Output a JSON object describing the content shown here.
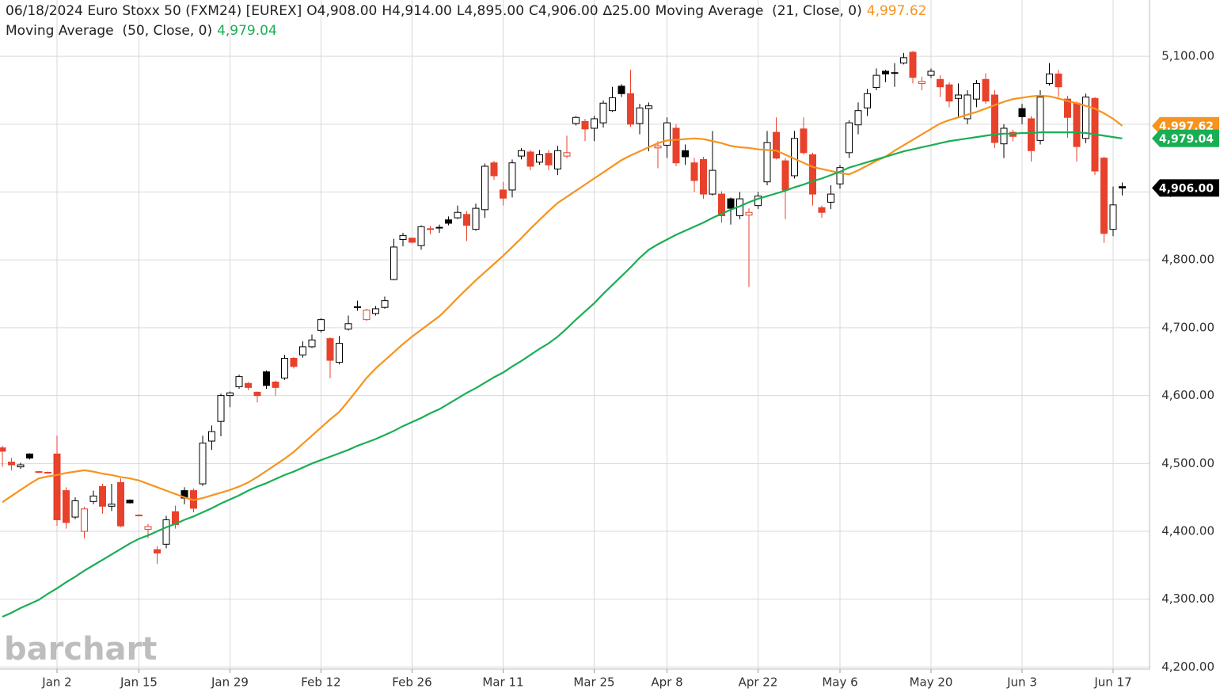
{
  "chart_data": {
    "type": "candlestick",
    "title": "06/18/2024 Euro Stoxx 50 (FXM24) [EUREX]",
    "ohlc_labels": [
      "O4,908.00",
      "H4,914.00",
      "L4,895.00",
      "C4,906.00"
    ],
    "change_label": "∆25.00",
    "last_price_label": "4,906.00",
    "watermark": "barchart",
    "up_color": "#000000",
    "down_color": "#e8412c",
    "categories": [
      null,
      null,
      null,
      null,
      null,
      null,
      "Jan 2",
      null,
      null,
      null,
      null,
      null,
      null,
      null,
      null,
      "Jan 15",
      null,
      null,
      null,
      null,
      null,
      null,
      null,
      null,
      null,
      "Jan 29",
      null,
      null,
      null,
      null,
      null,
      null,
      null,
      null,
      null,
      "Feb 12",
      null,
      null,
      null,
      null,
      null,
      null,
      null,
      null,
      null,
      "Feb 26",
      null,
      null,
      null,
      null,
      null,
      null,
      null,
      null,
      null,
      "Mar 11",
      null,
      null,
      null,
      null,
      null,
      null,
      null,
      null,
      null,
      "Mar 25",
      null,
      null,
      null,
      null,
      null,
      null,
      null,
      "Apr 8",
      null,
      null,
      null,
      null,
      null,
      null,
      null,
      null,
      null,
      "Apr 22",
      null,
      null,
      null,
      null,
      null,
      null,
      null,
      null,
      "May 6",
      null,
      null,
      null,
      null,
      null,
      null,
      null,
      null,
      null,
      "May 20",
      null,
      null,
      null,
      null,
      null,
      null,
      null,
      null,
      null,
      "Jun 3",
      null,
      null,
      null,
      null,
      null,
      null,
      null,
      null,
      null,
      "Jun 17",
      null
    ],
    "open": [
      4523,
      4502,
      4495,
      4514,
      4488,
      4487,
      4514,
      4460,
      4421,
      4400,
      4444,
      4466,
      4437,
      4472,
      4446,
      4424,
      4403,
      4373,
      4381,
      4429,
      4460,
      4460,
      4470,
      4533,
      4562,
      4600,
      4613,
      4618,
      4605,
      4635,
      4620,
      4626,
      4655,
      4660,
      4672,
      4696,
      4684,
      4649,
      4698,
      4730,
      4712,
      4721,
      4730,
      4771,
      4830,
      4832,
      4821,
      4845,
      4848,
      4859,
      4862,
      4867,
      4845,
      4874,
      4943,
      4903,
      4903,
      4953,
      4959,
      4944,
      4957,
      4934,
      4953,
      5001,
      5004,
      4994,
      5002,
      5020,
      5056,
      5045,
      5001,
      5023,
      4965,
      4969,
      4994,
      4961,
      4943,
      4948,
      4897,
      4897,
      4890,
      4865,
      4866,
      4880,
      4915,
      4988,
      4946,
      4924,
      4993,
      4955,
      4877,
      4885,
      4912,
      4958,
      4999,
      5024,
      5054,
      5078,
      5076,
      5090,
      5106,
      5060,
      5072,
      5066,
      5058,
      5038,
      5008,
      5037,
      5066,
      5043,
      4971,
      4988,
      5023,
      5008,
      4976,
      5060,
      5074,
      5037,
      5031,
      4979,
      5038,
      4950,
      4845,
      4908
    ],
    "high": [
      4526,
      4508,
      4501,
      4515,
      4489,
      4488,
      4541,
      4465,
      4450,
      4436,
      4460,
      4470,
      4470,
      4478,
      4447,
      4425,
      4411,
      4378,
      4423,
      4438,
      4465,
      4463,
      4541,
      4556,
      4603,
      4606,
      4631,
      4620,
      4606,
      4637,
      4622,
      4660,
      4657,
      4680,
      4690,
      4714,
      4686,
      4688,
      4718,
      4740,
      4728,
      4732,
      4746,
      4831,
      4840,
      4833,
      4851,
      4850,
      4852,
      4864,
      4880,
      4872,
      4883,
      4942,
      4946,
      4915,
      4948,
      4965,
      4962,
      4962,
      4962,
      4968,
      4983,
      5012,
      5008,
      5012,
      5035,
      5055,
      5059,
      5080,
      5030,
      5032,
      4975,
      5010,
      5000,
      4970,
      4950,
      4952,
      4990,
      4901,
      4892,
      4900,
      4876,
      4900,
      4990,
      5010,
      4950,
      4990,
      5010,
      4958,
      4880,
      4910,
      4940,
      5006,
      5032,
      5052,
      5082,
      5080,
      5090,
      5105,
      5108,
      5070,
      5082,
      5072,
      5062,
      5060,
      5050,
      5065,
      5075,
      5050,
      5000,
      4992,
      5030,
      5012,
      5050,
      5090,
      5080,
      5042,
      5033,
      5045,
      5040,
      4952,
      4908,
      4914
    ],
    "low": [
      4495,
      4490,
      4492,
      4506,
      4486,
      4485,
      4408,
      4404,
      4418,
      4390,
      4440,
      4426,
      4430,
      4406,
      4441,
      4422,
      4390,
      4352,
      4375,
      4404,
      4440,
      4428,
      4467,
      4520,
      4540,
      4583,
      4610,
      4608,
      4590,
      4610,
      4600,
      4623,
      4640,
      4656,
      4670,
      4693,
      4626,
      4646,
      4696,
      4725,
      4710,
      4718,
      4728,
      4770,
      4820,
      4824,
      4815,
      4838,
      4840,
      4851,
      4860,
      4828,
      4843,
      4862,
      4918,
      4880,
      4892,
      4948,
      4932,
      4940,
      4932,
      4925,
      4950,
      4998,
      4975,
      4975,
      4995,
      5018,
      5040,
      4996,
      4985,
      4960,
      4935,
      4950,
      4938,
      4940,
      4900,
      4890,
      4895,
      4855,
      4852,
      4860,
      4760,
      4875,
      4910,
      4948,
      4860,
      4920,
      4955,
      4880,
      4862,
      4875,
      4905,
      4950,
      4985,
      5012,
      5050,
      5062,
      5055,
      5088,
      5060,
      5050,
      5068,
      5040,
      5025,
      5010,
      5000,
      5025,
      5030,
      4965,
      4950,
      4975,
      5000,
      4945,
      4970,
      5057,
      5040,
      4980,
      4945,
      4972,
      4925,
      4825,
      4835,
      4895
    ],
    "close": [
      4518,
      4498,
      4498,
      4508,
      4487,
      4486,
      4417,
      4413,
      4445,
      4433,
      4452,
      4437,
      4440,
      4408,
      4442,
      4423,
      4407,
      4368,
      4417,
      4410,
      4449,
      4434,
      4530,
      4547,
      4600,
      4604,
      4628,
      4612,
      4600,
      4615,
      4612,
      4655,
      4643,
      4672,
      4682,
      4712,
      4652,
      4677,
      4706,
      4731,
      4726,
      4728,
      4740,
      4819,
      4836,
      4826,
      4849,
      4846,
      4848,
      4854,
      4870,
      4851,
      4876,
      4938,
      4924,
      4891,
      4943,
      4961,
      4938,
      4955,
      4940,
      4961,
      4958,
      5010,
      4993,
      5008,
      5031,
      5039,
      5045,
      5000,
      5024,
      5027,
      4968,
      5002,
      4943,
      4952,
      4917,
      4897,
      4932,
      4865,
      4876,
      4890,
      4870,
      4894,
      4973,
      4950,
      4903,
      4979,
      4958,
      4897,
      4870,
      4897,
      4936,
      5002,
      5020,
      5045,
      5072,
      5074,
      5075,
      5098,
      5069,
      5063,
      5078,
      5055,
      5034,
      5043,
      5043,
      5060,
      5034,
      4973,
      4994,
      4982,
      5011,
      4961,
      5040,
      5074,
      5055,
      5010,
      4967,
      5040,
      4931,
      4839,
      4881,
      4906
    ],
    "series": [
      {
        "name": "Moving Average  (21, Close, 0)",
        "color": "#f7931e",
        "last_label": "4,997.62",
        "values": [
          4443,
          4452,
          4461,
          4470,
          4478,
          4481,
          4483,
          4486,
          4488,
          4490,
          4488,
          4485,
          4483,
          4480,
          4478,
          4475,
          4470,
          4465,
          4460,
          4455,
          4450,
          4446,
          4449,
          4453,
          4457,
          4461,
          4466,
          4472,
          4480,
          4489,
          4498,
          4507,
          4517,
          4529,
          4541,
          4553,
          4565,
          4576,
          4592,
          4609,
          4626,
          4640,
          4652,
          4664,
          4676,
          4687,
          4697,
          4707,
          4717,
          4730,
          4744,
          4757,
          4770,
          4782,
          4794,
          4806,
          4819,
          4832,
          4846,
          4859,
          4872,
          4884,
          4893,
          4902,
          4911,
          4920,
          4929,
          4938,
          4947,
          4954,
          4960,
          4966,
          4972,
          4976,
          4977,
          4978,
          4979,
          4978,
          4975,
          4972,
          4968,
          4966,
          4965,
          4963,
          4962,
          4961,
          4955,
          4949,
          4943,
          4937,
          4934,
          4931,
          4928,
          4926,
          4932,
          4939,
          4946,
          4952,
          4961,
          4969,
          4977,
          4985,
          4993,
          5001,
          5006,
          5010,
          5014,
          5018,
          5023,
          5028,
          5033,
          5037,
          5039,
          5041,
          5042,
          5041,
          5038,
          5034,
          5031,
          5027,
          5023,
          5016,
          5008,
          4997.62
        ]
      },
      {
        "name": "Moving Average  (50, Close, 0)",
        "color": "#1aae54",
        "last_label": "4,979.04",
        "values": [
          4274,
          4280,
          4287,
          4293,
          4299,
          4308,
          4316,
          4325,
          4333,
          4342,
          4350,
          4358,
          4366,
          4374,
          4382,
          4389,
          4394,
          4400,
          4406,
          4411,
          4417,
          4422,
          4428,
          4434,
          4441,
          4447,
          4453,
          4460,
          4466,
          4471,
          4477,
          4483,
          4488,
          4494,
          4500,
          4505,
          4510,
          4515,
          4520,
          4526,
          4531,
          4536,
          4542,
          4548,
          4555,
          4561,
          4567,
          4574,
          4580,
          4588,
          4596,
          4604,
          4611,
          4619,
          4627,
          4634,
          4643,
          4651,
          4660,
          4669,
          4677,
          4687,
          4699,
          4712,
          4724,
          4736,
          4750,
          4763,
          4776,
          4789,
          4803,
          4815,
          4823,
          4830,
          4837,
          4843,
          4849,
          4855,
          4862,
          4868,
          4874,
          4879,
          4885,
          4890,
          4894,
          4898,
          4902,
          4907,
          4911,
          4916,
          4920,
          4925,
          4930,
          4936,
          4940,
          4944,
          4948,
          4952,
          4956,
          4960,
          4963,
          4966,
          4969,
          4972,
          4975,
          4977,
          4979,
          4981,
          4983,
          4985,
          4986,
          4986,
          4987,
          4987,
          4988,
          4988,
          4988,
          4988,
          4988,
          4987,
          4985,
          4983,
          4981,
          4979.04
        ]
      }
    ],
    "ylim": [
      4197,
      5183
    ],
    "yticks": [
      {
        "value": 4200,
        "label": "4,200.00"
      },
      {
        "value": 4300,
        "label": "4,300.00"
      },
      {
        "value": 4400,
        "label": "4,400.00"
      },
      {
        "value": 4500,
        "label": "4,500.00"
      },
      {
        "value": 4600,
        "label": "4,600.00"
      },
      {
        "value": 4700,
        "label": "4,700.00"
      },
      {
        "value": 4800,
        "label": "4,800.00"
      },
      {
        "value": 4900,
        "label": "4,900.00"
      },
      {
        "value": 5000,
        "label": "5,000.00"
      },
      {
        "value": 5100,
        "label": "5,100.00"
      }
    ],
    "grid": true
  }
}
